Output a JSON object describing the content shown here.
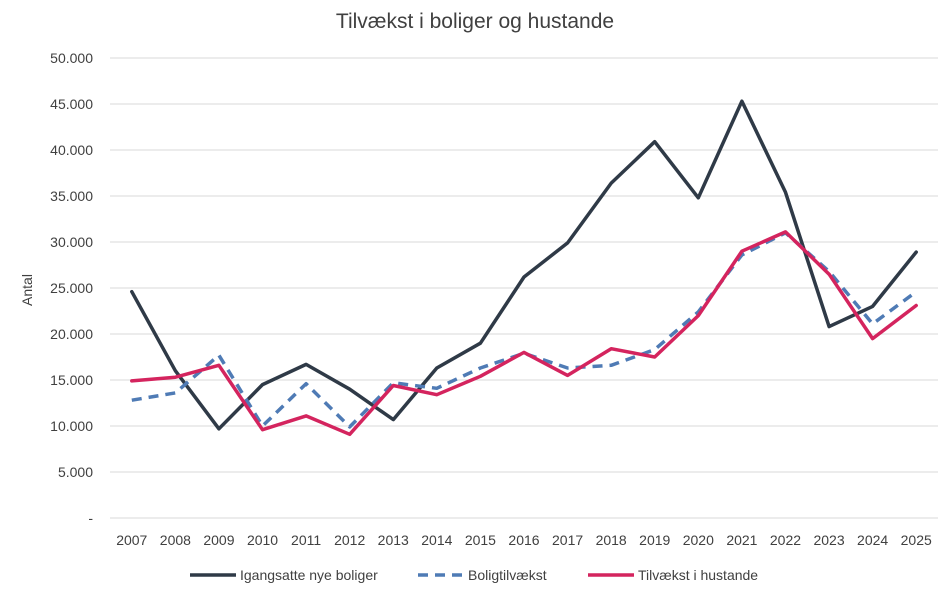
{
  "chart_data": {
    "type": "line",
    "title": "Tilvækst i boliger og hustande",
    "xlabel": "",
    "ylabel": "Antal",
    "ylim": [
      0,
      50000
    ],
    "y_ticks": [
      0,
      5000,
      10000,
      15000,
      20000,
      25000,
      30000,
      35000,
      40000,
      45000,
      50000
    ],
    "y_tick_labels": [
      "-",
      "5.000",
      "10.000",
      "15.000",
      "20.000",
      "25.000",
      "30.000",
      "35.000",
      "40.000",
      "45.000",
      "50.000"
    ],
    "grid": "horizontal",
    "legend_position": "bottom",
    "categories": [
      "2007",
      "2008",
      "2009",
      "2010",
      "2011",
      "2012",
      "2013",
      "2014",
      "2015",
      "2016",
      "2017",
      "2018",
      "2019",
      "2020",
      "2021",
      "2022",
      "2023",
      "2024",
      "2025"
    ],
    "series": [
      {
        "name": "Igangsatte nye boliger",
        "color": "#2f3a47",
        "style": "solid",
        "values": [
          24600,
          16000,
          9700,
          14500,
          16700,
          14000,
          10700,
          16300,
          19000,
          26200,
          29900,
          36400,
          40900,
          34800,
          45300,
          35400,
          20800,
          23000,
          28900
        ]
      },
      {
        "name": "Boligtilvækst",
        "color": "#4f7bb5",
        "style": "dashed",
        "values": [
          12800,
          13600,
          17700,
          10000,
          14600,
          9900,
          14700,
          14100,
          16300,
          17900,
          16300,
          16600,
          18300,
          22400,
          28600,
          31000,
          26800,
          21100,
          24600
        ]
      },
      {
        "name": "Tilvækst i hustande",
        "color": "#d4245e",
        "style": "solid",
        "values": [
          14900,
          15300,
          16600,
          9600,
          11100,
          9100,
          14400,
          13400,
          15400,
          18000,
          15500,
          18400,
          17500,
          22000,
          29000,
          31100,
          26500,
          19500,
          23100
        ]
      }
    ]
  }
}
